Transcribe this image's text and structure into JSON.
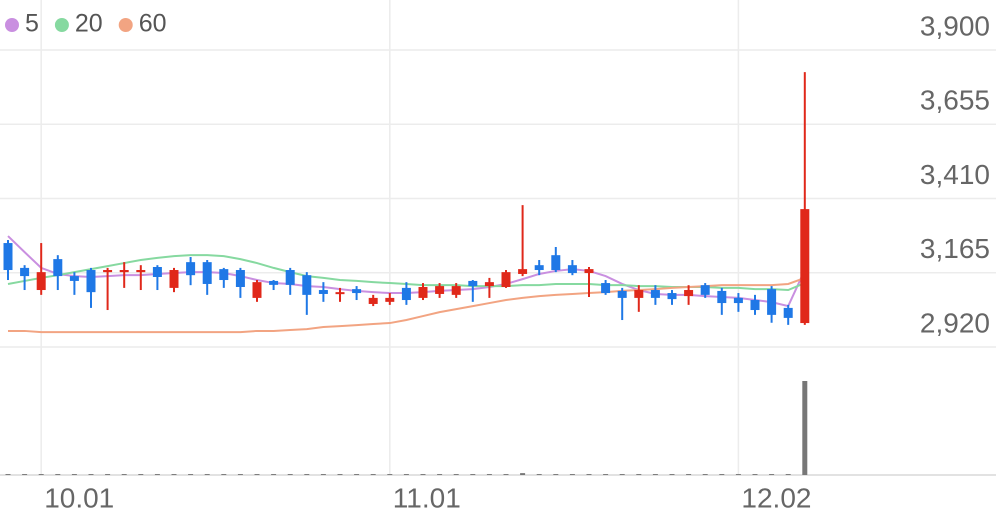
{
  "chart_data": {
    "type": "candlestick",
    "categories": [
      null,
      null,
      "10.01",
      null,
      null,
      null,
      null,
      null,
      null,
      null,
      null,
      null,
      null,
      null,
      null,
      null,
      null,
      null,
      null,
      null,
      null,
      null,
      null,
      "11.01",
      null,
      null,
      null,
      null,
      null,
      null,
      null,
      null,
      null,
      null,
      null,
      null,
      null,
      null,
      null,
      null,
      null,
      null,
      null,
      null,
      "12.02",
      null,
      null,
      null,
      null
    ],
    "open": [
      3263,
      3181,
      3108,
      3210,
      3154,
      3174,
      3167,
      3167,
      3167,
      3184,
      3115,
      3200,
      3200,
      3177,
      3174,
      3082,
      3138,
      3174,
      3157,
      3108,
      3095,
      3111,
      3062,
      3069,
      3115,
      3082,
      3095,
      3092,
      3138,
      3121,
      3118,
      3161,
      3190,
      3223,
      3190,
      3164,
      3131,
      3105,
      3082,
      3108,
      3098,
      3088,
      3124,
      3105,
      3082,
      3075,
      3111,
      3049,
      2999
    ],
    "high": [
      3273,
      3190,
      3263,
      3223,
      3167,
      3181,
      3181,
      3200,
      3190,
      3190,
      3181,
      3217,
      3207,
      3181,
      3181,
      3141,
      3141,
      3181,
      3167,
      3134,
      3115,
      3121,
      3092,
      3098,
      3134,
      3131,
      3131,
      3131,
      3141,
      3148,
      3174,
      3388,
      3207,
      3250,
      3207,
      3184,
      3141,
      3115,
      3124,
      3124,
      3108,
      3124,
      3131,
      3115,
      3098,
      3092,
      3121,
      3059,
      3827
    ],
    "low": [
      3141,
      3108,
      3092,
      3108,
      3092,
      3049,
      3042,
      3115,
      3108,
      3108,
      3101,
      3124,
      3092,
      3115,
      3082,
      3069,
      3108,
      3092,
      3026,
      3069,
      3069,
      3075,
      3055,
      3059,
      3059,
      3075,
      3082,
      3082,
      3069,
      3082,
      3115,
      3154,
      3157,
      3167,
      3157,
      3085,
      3092,
      3009,
      3036,
      3059,
      3059,
      3059,
      3082,
      3026,
      3036,
      3026,
      3000,
      2993,
      2993
    ],
    "close": [
      3174,
      3154,
      3167,
      3154,
      3138,
      3101,
      3174,
      3174,
      3174,
      3151,
      3174,
      3157,
      3128,
      3141,
      3118,
      3134,
      3125,
      3125,
      3092,
      3095,
      3101,
      3098,
      3082,
      3082,
      3075,
      3118,
      3121,
      3121,
      3121,
      3134,
      3167,
      3177,
      3174,
      3174,
      3164,
      3177,
      3098,
      3082,
      3108,
      3082,
      3078,
      3108,
      3092,
      3065,
      3065,
      3042,
      3026,
      3016,
      3375
    ],
    "up_color": "#e0281a",
    "down_color": "#1f78e6",
    "series": [
      {
        "name": "5",
        "color": "#c98fe0",
        "values": [
          3286,
          3233,
          3181,
          3161,
          3154,
          3151,
          3154,
          3157,
          3157,
          3161,
          3164,
          3167,
          3167,
          3164,
          3154,
          3141,
          3131,
          3128,
          3121,
          3118,
          3111,
          3105,
          3101,
          3098,
          3098,
          3101,
          3105,
          3108,
          3111,
          3118,
          3128,
          3144,
          3161,
          3171,
          3177,
          3171,
          3154,
          3128,
          3108,
          3095,
          3092,
          3092,
          3088,
          3085,
          3082,
          3075,
          3068,
          3055,
          3174
        ]
      },
      {
        "name": "20",
        "color": "#86d9a0",
        "values": [
          3128,
          3138,
          3148,
          3157,
          3167,
          3177,
          3187,
          3197,
          3207,
          3214,
          3220,
          3223,
          3223,
          3220,
          3210,
          3197,
          3181,
          3167,
          3154,
          3148,
          3141,
          3138,
          3134,
          3131,
          3128,
          3124,
          3124,
          3124,
          3121,
          3121,
          3121,
          3124,
          3124,
          3128,
          3128,
          3128,
          3124,
          3124,
          3121,
          3121,
          3118,
          3118,
          3118,
          3115,
          3115,
          3111,
          3111,
          3108,
          3131
        ]
      },
      {
        "name": "60",
        "color": "#f2a482",
        "values": [
          2973,
          2973,
          2969,
          2969,
          2969,
          2969,
          2969,
          2969,
          2969,
          2969,
          2969,
          2969,
          2969,
          2969,
          2969,
          2973,
          2973,
          2976,
          2979,
          2986,
          2989,
          2992,
          2996,
          2999,
          3009,
          3022,
          3035,
          3045,
          3055,
          3065,
          3075,
          3082,
          3088,
          3092,
          3095,
          3098,
          3101,
          3105,
          3108,
          3111,
          3115,
          3118,
          3121,
          3124,
          3124,
          3124,
          3124,
          3128,
          3148
        ]
      }
    ],
    "volume": [
      1,
      1,
      1,
      1,
      1,
      1,
      1,
      1,
      1,
      1,
      1,
      1,
      1,
      1,
      1,
      1,
      1,
      1,
      1,
      1,
      1,
      1,
      1,
      1,
      1,
      1,
      1,
      1,
      1,
      1,
      1,
      2,
      1,
      1,
      1,
      1,
      1,
      1,
      1,
      1,
      1,
      1,
      1,
      1,
      1,
      1,
      1,
      1,
      100
    ],
    "volume_color": "#777777",
    "volume_ylim": [
      0,
      100
    ],
    "ylim": [
      2920,
      3900
    ],
    "yticks": [
      {
        "value": 2920,
        "label": "2,920"
      },
      {
        "value": 3165,
        "label": "3,165"
      },
      {
        "value": 3410,
        "label": "3,410"
      },
      {
        "value": 3655,
        "label": "3,655"
      },
      {
        "value": 3900,
        "label": "3,900"
      }
    ],
    "grid": true
  }
}
